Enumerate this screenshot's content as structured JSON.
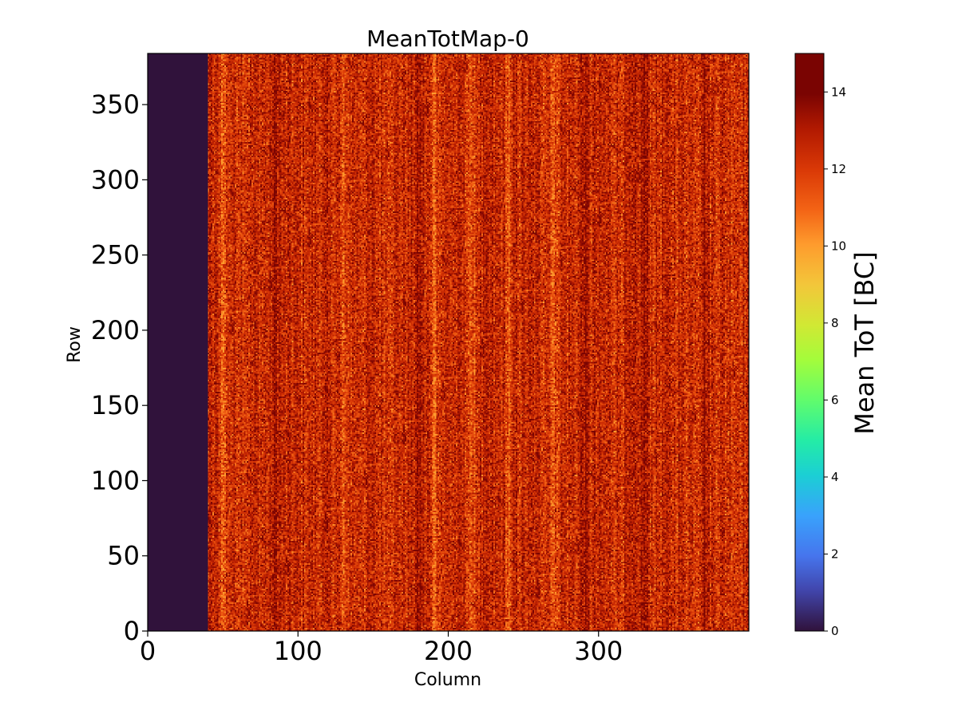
{
  "chart_data": {
    "type": "heatmap",
    "title": "MeanTotMap-0",
    "xlabel": "Column",
    "ylabel": "Row",
    "xlim": [
      0,
      400
    ],
    "ylim": [
      0,
      384
    ],
    "x_ticks": [
      0,
      100,
      200,
      300
    ],
    "y_ticks": [
      0,
      50,
      100,
      150,
      200,
      250,
      300,
      350
    ],
    "colormap": "turbo",
    "colorbar": {
      "label": "Mean ToT [BC]",
      "range": [
        0,
        15
      ],
      "ticks": [
        0,
        2,
        4,
        6,
        8,
        10,
        12,
        14
      ]
    },
    "regions": [
      {
        "columns": [
          0,
          40
        ],
        "rows": [
          0,
          384
        ],
        "value": 0,
        "description_value_only": true
      },
      {
        "columns": [
          40,
          400
        ],
        "rows": [
          0,
          384
        ],
        "value_mean": 12.5,
        "value_spread": [
          10,
          15
        ]
      }
    ],
    "bright_columns": [
      130,
      50,
      190,
      215,
      240,
      270
    ],
    "dark_columns": [
      85,
      180,
      290,
      330,
      370
    ]
  },
  "colors": {
    "masked": "#30123b",
    "background": "#ffffff"
  }
}
